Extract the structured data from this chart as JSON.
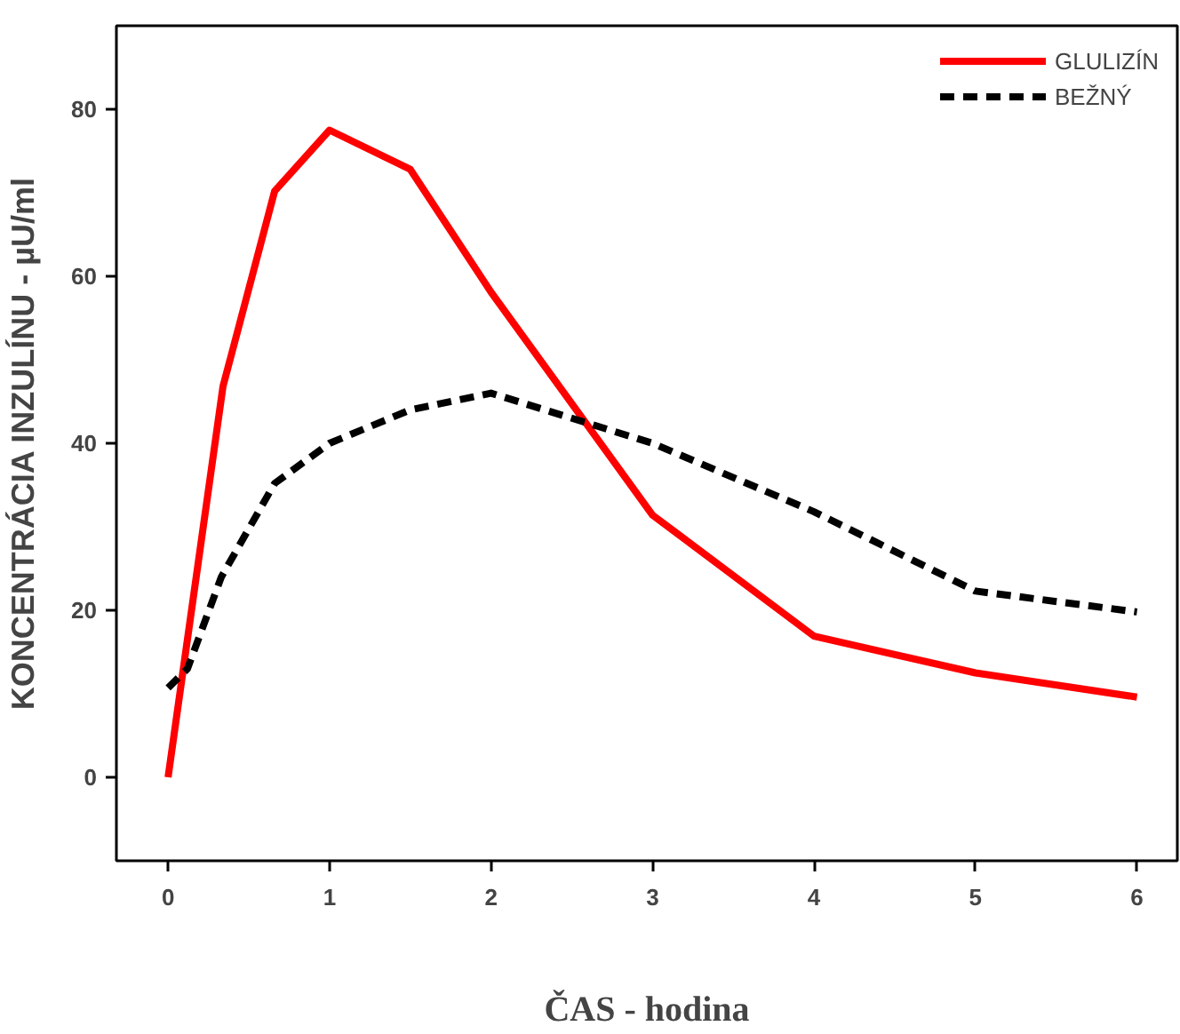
{
  "chart_data": {
    "type": "line",
    "xlabel": "ČAS - hodina",
    "ylabel": "KONCENTRÁCIA INZULÍNU - µU/ml",
    "xlim": [
      -0.32,
      6.25
    ],
    "ylim": [
      -10,
      90
    ],
    "xticks": [
      0,
      1,
      2,
      3,
      4,
      5,
      6
    ],
    "yticks": [
      0,
      20,
      40,
      60,
      80
    ],
    "grid": false,
    "legend": "top right",
    "marker": "none",
    "series": [
      {
        "name": "GLULIZÍN",
        "color": "#ff0000",
        "line_style": "solid",
        "x": [
          0,
          0.34,
          0.66,
          1.0,
          1.5,
          2.0,
          3.0,
          4.0,
          5.0,
          6.0
        ],
        "values": [
          0,
          46.8,
          70.2,
          77.5,
          72.8,
          58.1,
          31.4,
          16.9,
          12.5,
          9.6
        ]
      },
      {
        "name": "BEŽNÝ",
        "color": "#000000",
        "line_style": "dashed",
        "x": [
          0,
          0.12,
          0.33,
          0.66,
          1.0,
          1.5,
          2.0,
          3.0,
          4.0,
          5.0,
          6.0
        ],
        "values": [
          10.7,
          13,
          24,
          35.2,
          40,
          44,
          46,
          40,
          31.8,
          22.3,
          19.8
        ]
      }
    ]
  }
}
